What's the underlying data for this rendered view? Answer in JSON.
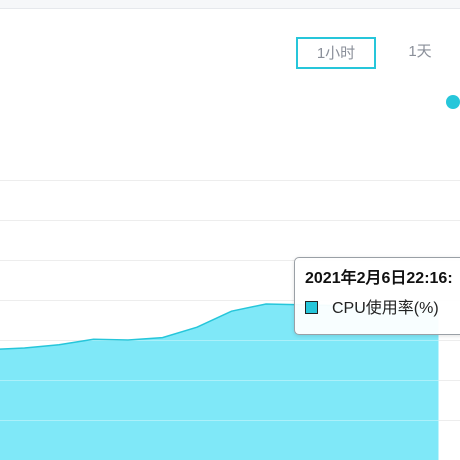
{
  "range_tabs": [
    {
      "label": "1小时",
      "active": true
    },
    {
      "label": "1天",
      "active": false
    }
  ],
  "colors": {
    "series_line": "#26c6da",
    "series_fill": "#7fe8f8",
    "tab_border": "#26c6da",
    "grid": "#e3e3e3"
  },
  "tooltip": {
    "title": "2021年2月6日22:16:",
    "series_label": "CPU使用率(%)"
  },
  "chart_data": {
    "type": "area",
    "series": [
      {
        "name": "CPU使用率(%)",
        "values": [
          13.8,
          14.0,
          14.4,
          15.1,
          15.0,
          15.3,
          16.6,
          18.6,
          19.5,
          19.4,
          19.3,
          19.0,
          18.8,
          18.6
        ]
      }
    ],
    "ylim": [
      0,
      40
    ],
    "grid": true,
    "legend": "top-right"
  }
}
